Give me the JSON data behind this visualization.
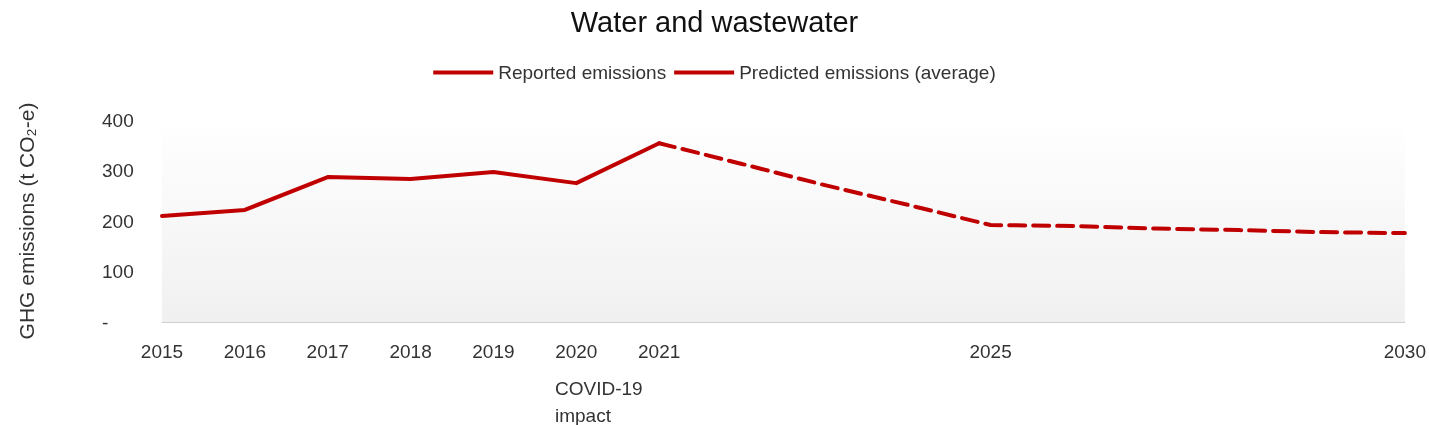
{
  "chart_data": {
    "type": "line",
    "title": "Water and wastewater",
    "ylabel": "GHG emissions (t CO₂-e)",
    "categories": [
      "2015",
      "2016",
      "2017",
      "2018",
      "2019",
      "2020",
      "2021",
      null,
      null,
      null,
      "2025",
      null,
      null,
      null,
      null,
      "2030"
    ],
    "series": [
      {
        "name": "Reported emissions",
        "color": "#c00000",
        "line_style": "solid",
        "values": [
          210,
          222,
          287,
          283,
          297,
          275,
          354,
          null,
          null,
          null,
          null,
          null,
          null,
          null,
          null,
          null
        ]
      },
      {
        "name": "Predicted emissions (average)",
        "color": "#c00000",
        "line_style": "dashed",
        "values": [
          null,
          null,
          null,
          null,
          null,
          null,
          354,
          313,
          271,
          232,
          192,
          190,
          185,
          182,
          178,
          176
        ]
      }
    ],
    "ylim": [
      0,
      400
    ],
    "yticks": [
      {
        "value": 0,
        "label": "-"
      },
      100,
      200,
      300,
      400
    ],
    "annotations": [
      "COVID-19 impact"
    ],
    "grid": false,
    "legend": "top",
    "marker": "none"
  }
}
